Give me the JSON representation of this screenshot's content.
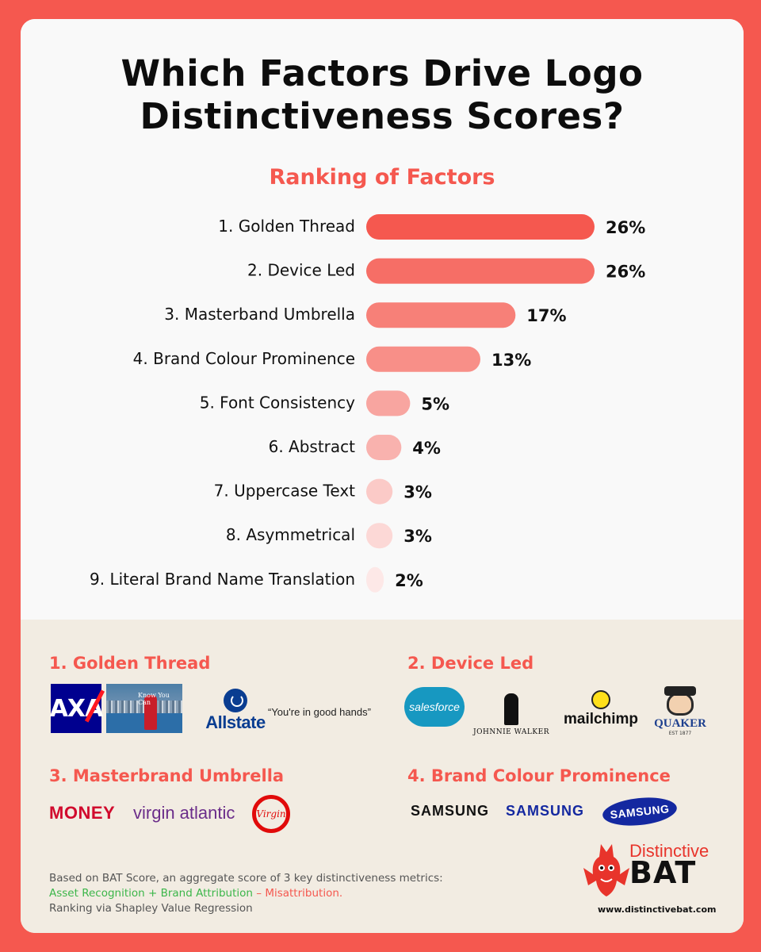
{
  "title_line1": "Which Factors Drive Logo",
  "title_line2": "Distinctiveness Scores?",
  "chart_data": {
    "type": "bar",
    "orientation": "horizontal",
    "title": "Ranking of Factors",
    "categories": [
      "1. Golden Thread",
      "2. Device Led",
      "3. Masterband Umbrella",
      "4. Brand Colour Prominence",
      "5. Font Consistency",
      "6. Abstract",
      "7. Uppercase Text",
      "8. Asymmetrical",
      "9. Literal Brand Name Translation"
    ],
    "values": [
      26,
      26,
      17,
      13,
      5,
      4,
      3,
      3,
      2
    ],
    "value_labels": [
      "26%",
      "26%",
      "17%",
      "13%",
      "5%",
      "4%",
      "3%",
      "3%",
      "2%"
    ],
    "unit": "%",
    "xlim": [
      0,
      26
    ],
    "grid": false,
    "bar_colors": [
      "#f5584f",
      "#f66e66",
      "#f78078",
      "#f88f88",
      "#f8a5a0",
      "#f9b2ae",
      "#fbcac7",
      "#fcd8d6",
      "#fde8e7"
    ]
  },
  "examples": {
    "golden_thread": {
      "title": "1. Golden Thread",
      "axa": "AXA",
      "ad_text": "Know You Can",
      "allstate": "Allstate",
      "allstate_quote": "“You're in good hands”"
    },
    "device_led": {
      "title": "2. Device Led",
      "salesforce": "salesforce",
      "johnnie_walker": "JOHNNIE WALKER",
      "mailchimp": "mailchimp",
      "quaker": "QUAKER",
      "quaker_sub": "EST 1877"
    },
    "masterbrand": {
      "title": "3. Masterbrand Umbrella",
      "virgin_money": "MONEY",
      "virgin_atlantic": "virgin atlantic",
      "virgin_media": "Virgin"
    },
    "colour": {
      "title": "4. Brand Colour Prominence",
      "samsung_a": "SAMSUNG",
      "samsung_b": "SAMSUNG",
      "samsung_c": "SAMSUNG"
    }
  },
  "footnote": {
    "line1": "Based on BAT Score, an aggregate score of 3 key distinctiveness metrics:",
    "line2_green": "Asset Recognition + Brand Attribution",
    "line2_sep": " – ",
    "line2_red": "Misattribution.",
    "line3": "Ranking via Shapley Value Regression"
  },
  "brand": {
    "word1": "Distinctive",
    "word2": "BAT",
    "url": "www.distinctivebat.com"
  },
  "colors": {
    "accent": "#f5584f",
    "background": "#f9f9f9",
    "examples_bg": "#f2ece2"
  }
}
